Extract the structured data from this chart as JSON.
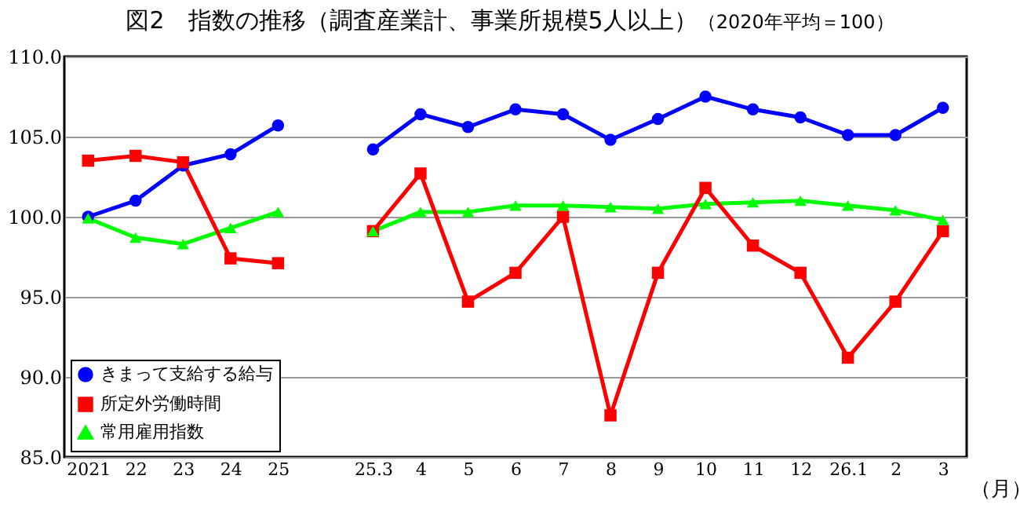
{
  "chart_data": {
    "type": "line",
    "title": "図2　指数の推移（調査産業計、事業所規模5人以上）",
    "subtitle": "（2020年平均＝100）",
    "xlabel": "（月）",
    "categories": [
      "2021",
      "22",
      "23",
      "24",
      "25",
      null,
      "25.3",
      "4",
      "5",
      "6",
      "7",
      "8",
      "9",
      "10",
      "11",
      "12",
      "26.1",
      "2",
      "3"
    ],
    "series": [
      {
        "name": "きまって支給する給与",
        "color": "#0000ff",
        "marker": "circle",
        "values": [
          100.0,
          101.0,
          103.2,
          103.9,
          105.7,
          null,
          104.2,
          106.4,
          105.6,
          106.7,
          106.4,
          104.8,
          106.1,
          107.5,
          106.7,
          106.2,
          105.1,
          105.1,
          106.8
        ]
      },
      {
        "name": "所定外労働時間",
        "color": "#ff0000",
        "marker": "square",
        "values": [
          103.5,
          103.8,
          103.4,
          97.4,
          97.1,
          null,
          99.1,
          102.7,
          94.7,
          96.5,
          100.0,
          87.6,
          96.5,
          101.8,
          98.2,
          96.5,
          91.2,
          94.7,
          99.1
        ]
      },
      {
        "name": "常用雇用指数",
        "color": "#00ff00",
        "marker": "triangle",
        "values": [
          99.9,
          98.7,
          98.3,
          99.3,
          100.3,
          null,
          99.1,
          100.3,
          100.3,
          100.7,
          100.7,
          100.6,
          100.5,
          100.8,
          100.9,
          101.0,
          100.7,
          100.4,
          99.8
        ]
      }
    ],
    "ylim": [
      85,
      110
    ],
    "yticks": [
      {
        "value": 85,
        "label": "85.0"
      },
      {
        "value": 90,
        "label": "90.0"
      },
      {
        "value": 95,
        "label": "95.0"
      },
      {
        "value": 100,
        "label": "100.0"
      },
      {
        "value": 105,
        "label": "105.0"
      },
      {
        "value": 110,
        "label": "110.0"
      }
    ],
    "grid": "y",
    "legend": "bottom left"
  }
}
